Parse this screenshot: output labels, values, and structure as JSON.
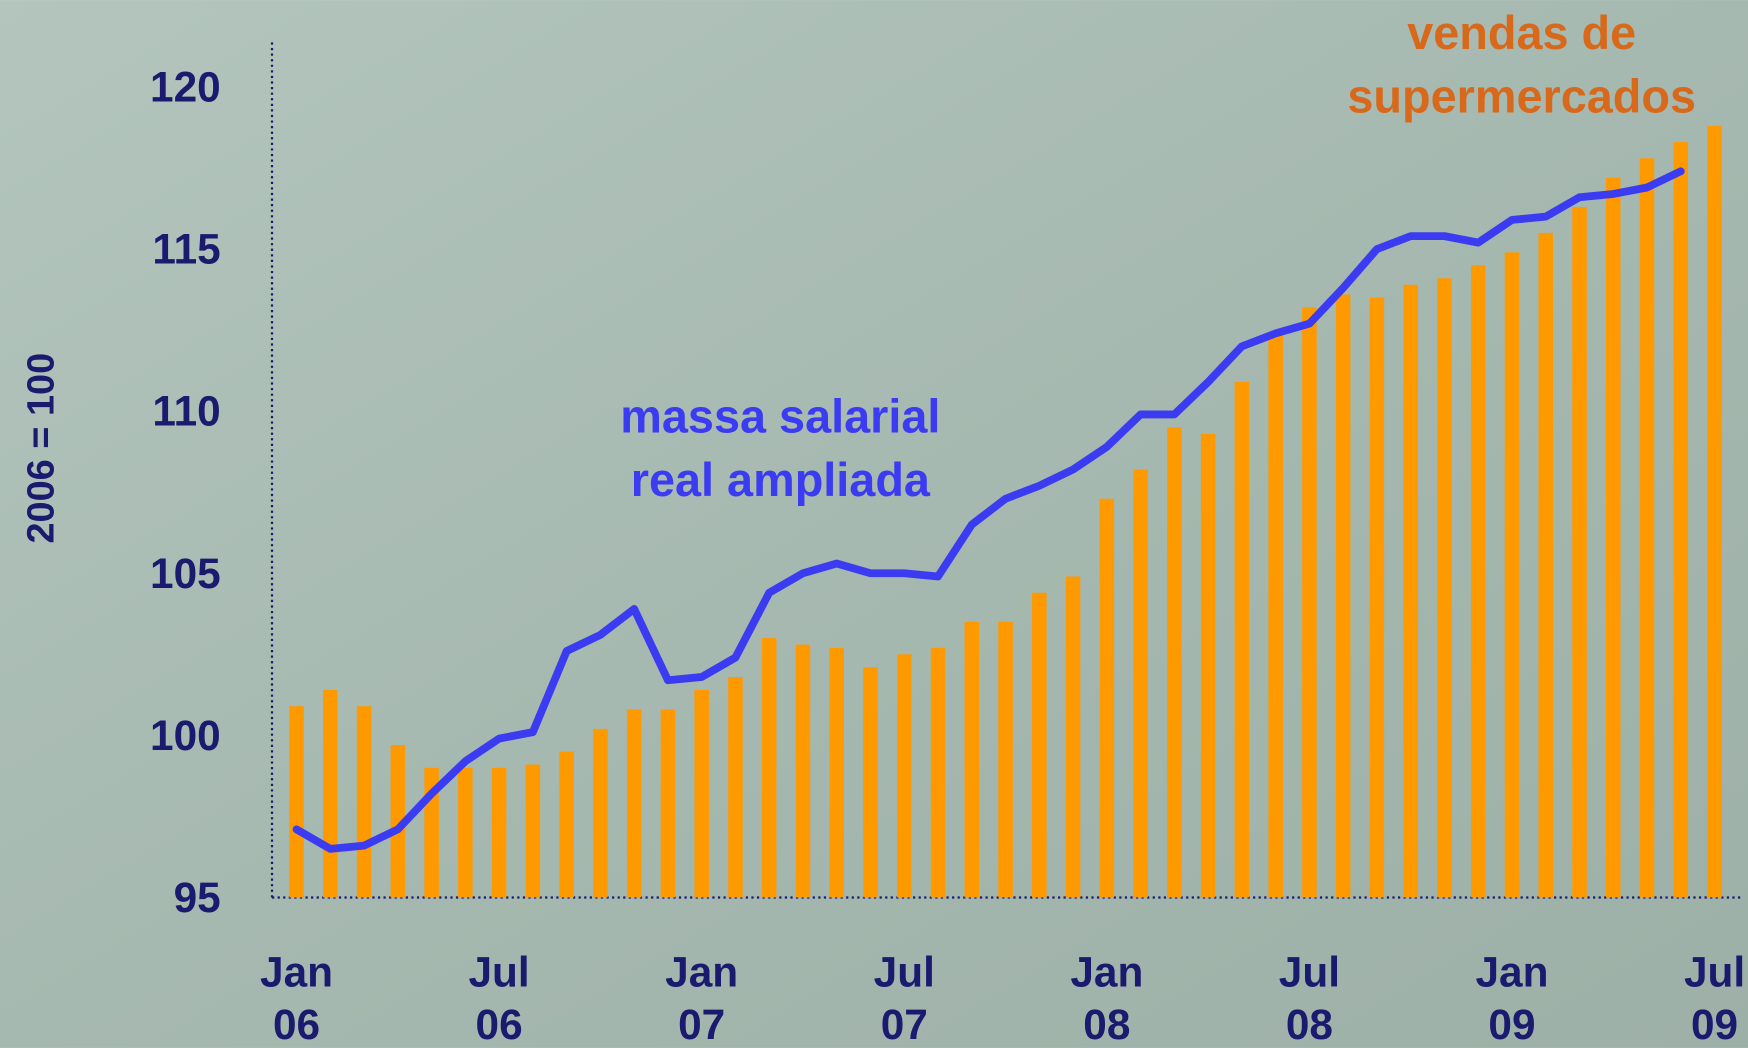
{
  "chart_data": {
    "type": "bar-line",
    "y_label": "2006 = 100",
    "categories": [
      "Jan 06",
      null,
      null,
      null,
      null,
      null,
      "Jul 06",
      null,
      null,
      null,
      null,
      null,
      "Jan 07",
      null,
      null,
      null,
      null,
      null,
      "Jul 07",
      null,
      null,
      null,
      null,
      null,
      "Jan 08",
      null,
      null,
      null,
      null,
      null,
      "Jul 08",
      null,
      null,
      null,
      null,
      null,
      "Jan 09",
      null,
      null,
      null,
      null,
      null,
      "Jul 09"
    ],
    "series": [
      {
        "name": "vendas de supermercados",
        "type": "bar",
        "color": "#ff9900",
        "values": [
          100.9,
          101.4,
          100.9,
          99.7,
          99.0,
          99.0,
          99.0,
          99.1,
          99.5,
          100.2,
          100.8,
          100.8,
          101.4,
          101.8,
          103.0,
          102.8,
          102.7,
          102.1,
          102.5,
          102.7,
          103.5,
          103.5,
          104.4,
          104.9,
          107.3,
          108.2,
          109.5,
          109.3,
          110.9,
          112.4,
          113.2,
          113.6,
          113.5,
          113.9,
          114.1,
          114.5,
          114.9,
          115.5,
          116.3,
          117.2,
          117.8,
          118.3,
          118.8
        ]
      },
      {
        "name": "massa salarial real ampliada",
        "type": "line",
        "color": "#3b3bf2",
        "values": [
          97.1,
          96.5,
          96.6,
          97.1,
          98.2,
          99.2,
          99.9,
          100.1,
          102.6,
          103.1,
          103.9,
          101.7,
          101.8,
          102.4,
          104.4,
          105.0,
          105.3,
          105.0,
          105.0,
          104.9,
          106.5,
          107.3,
          107.7,
          108.2,
          108.9,
          109.9,
          109.9,
          110.9,
          112.0,
          112.4,
          112.7,
          113.8,
          115.0,
          115.4,
          115.4,
          115.2,
          115.9,
          116.0,
          116.6,
          116.7,
          116.9,
          117.4,
          null
        ]
      }
    ],
    "ylim": [
      95,
      121.4
    ],
    "yticks": [
      95,
      100,
      105,
      110,
      115,
      120
    ]
  }
}
